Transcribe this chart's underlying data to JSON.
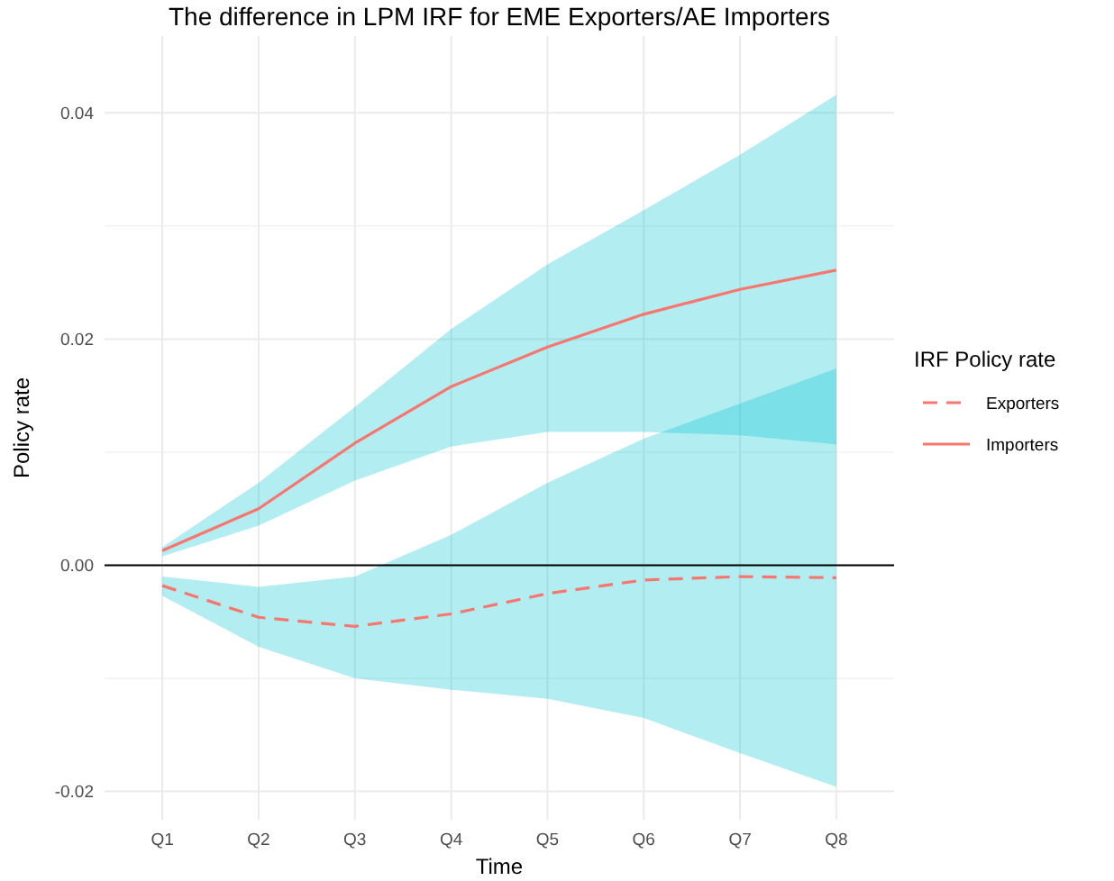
{
  "chart_data": {
    "type": "line",
    "title": "The difference in LPM IRF for EME Exporters/AE Importers",
    "xlabel": "Time",
    "ylabel": "Policy rate",
    "legend_title": "IRF Policy rate",
    "categories": [
      "Q1",
      "Q2",
      "Q3",
      "Q4",
      "Q5",
      "Q6",
      "Q7",
      "Q8"
    ],
    "series": [
      {
        "name": "Exporters",
        "color": "#f8766d",
        "line_style": "dashed",
        "values": [
          -0.0018,
          -0.0046,
          -0.0054,
          -0.0043,
          -0.0025,
          -0.0013,
          -0.001,
          -0.0011
        ],
        "lower": [
          -0.0027,
          -0.0072,
          -0.01,
          -0.011,
          -0.0118,
          -0.0135,
          -0.0166,
          -0.0196
        ],
        "upper": [
          -0.001,
          -0.0019,
          -0.001,
          0.0027,
          0.0073,
          0.0112,
          0.0143,
          0.0174
        ]
      },
      {
        "name": "Importers",
        "color": "#f8766d",
        "line_style": "solid",
        "values": [
          0.0013,
          0.005,
          0.0108,
          0.0158,
          0.0193,
          0.0222,
          0.0244,
          0.0261
        ],
        "lower": [
          0.0008,
          0.0035,
          0.0075,
          0.0105,
          0.0118,
          0.0118,
          0.0115,
          0.0107
        ],
        "upper": [
          0.0016,
          0.0073,
          0.014,
          0.0209,
          0.0266,
          0.0314,
          0.0363,
          0.0416
        ]
      }
    ],
    "ylim": [
      -0.0225,
      0.0468
    ],
    "yticks": [
      {
        "value": -0.02,
        "label": "-0.02"
      },
      {
        "value": -0.01,
        "label": null
      },
      {
        "value": 0,
        "label": "0.00"
      },
      {
        "value": 0.01,
        "label": null
      },
      {
        "value": 0.02,
        "label": "0.02"
      },
      {
        "value": 0.03,
        "label": null
      },
      {
        "value": 0.04,
        "label": "0.04"
      }
    ],
    "ref_lines": [
      {
        "axis": "y",
        "value": 0,
        "color": "#000000"
      }
    ],
    "grid": true,
    "legend": "right",
    "marker": "none"
  }
}
